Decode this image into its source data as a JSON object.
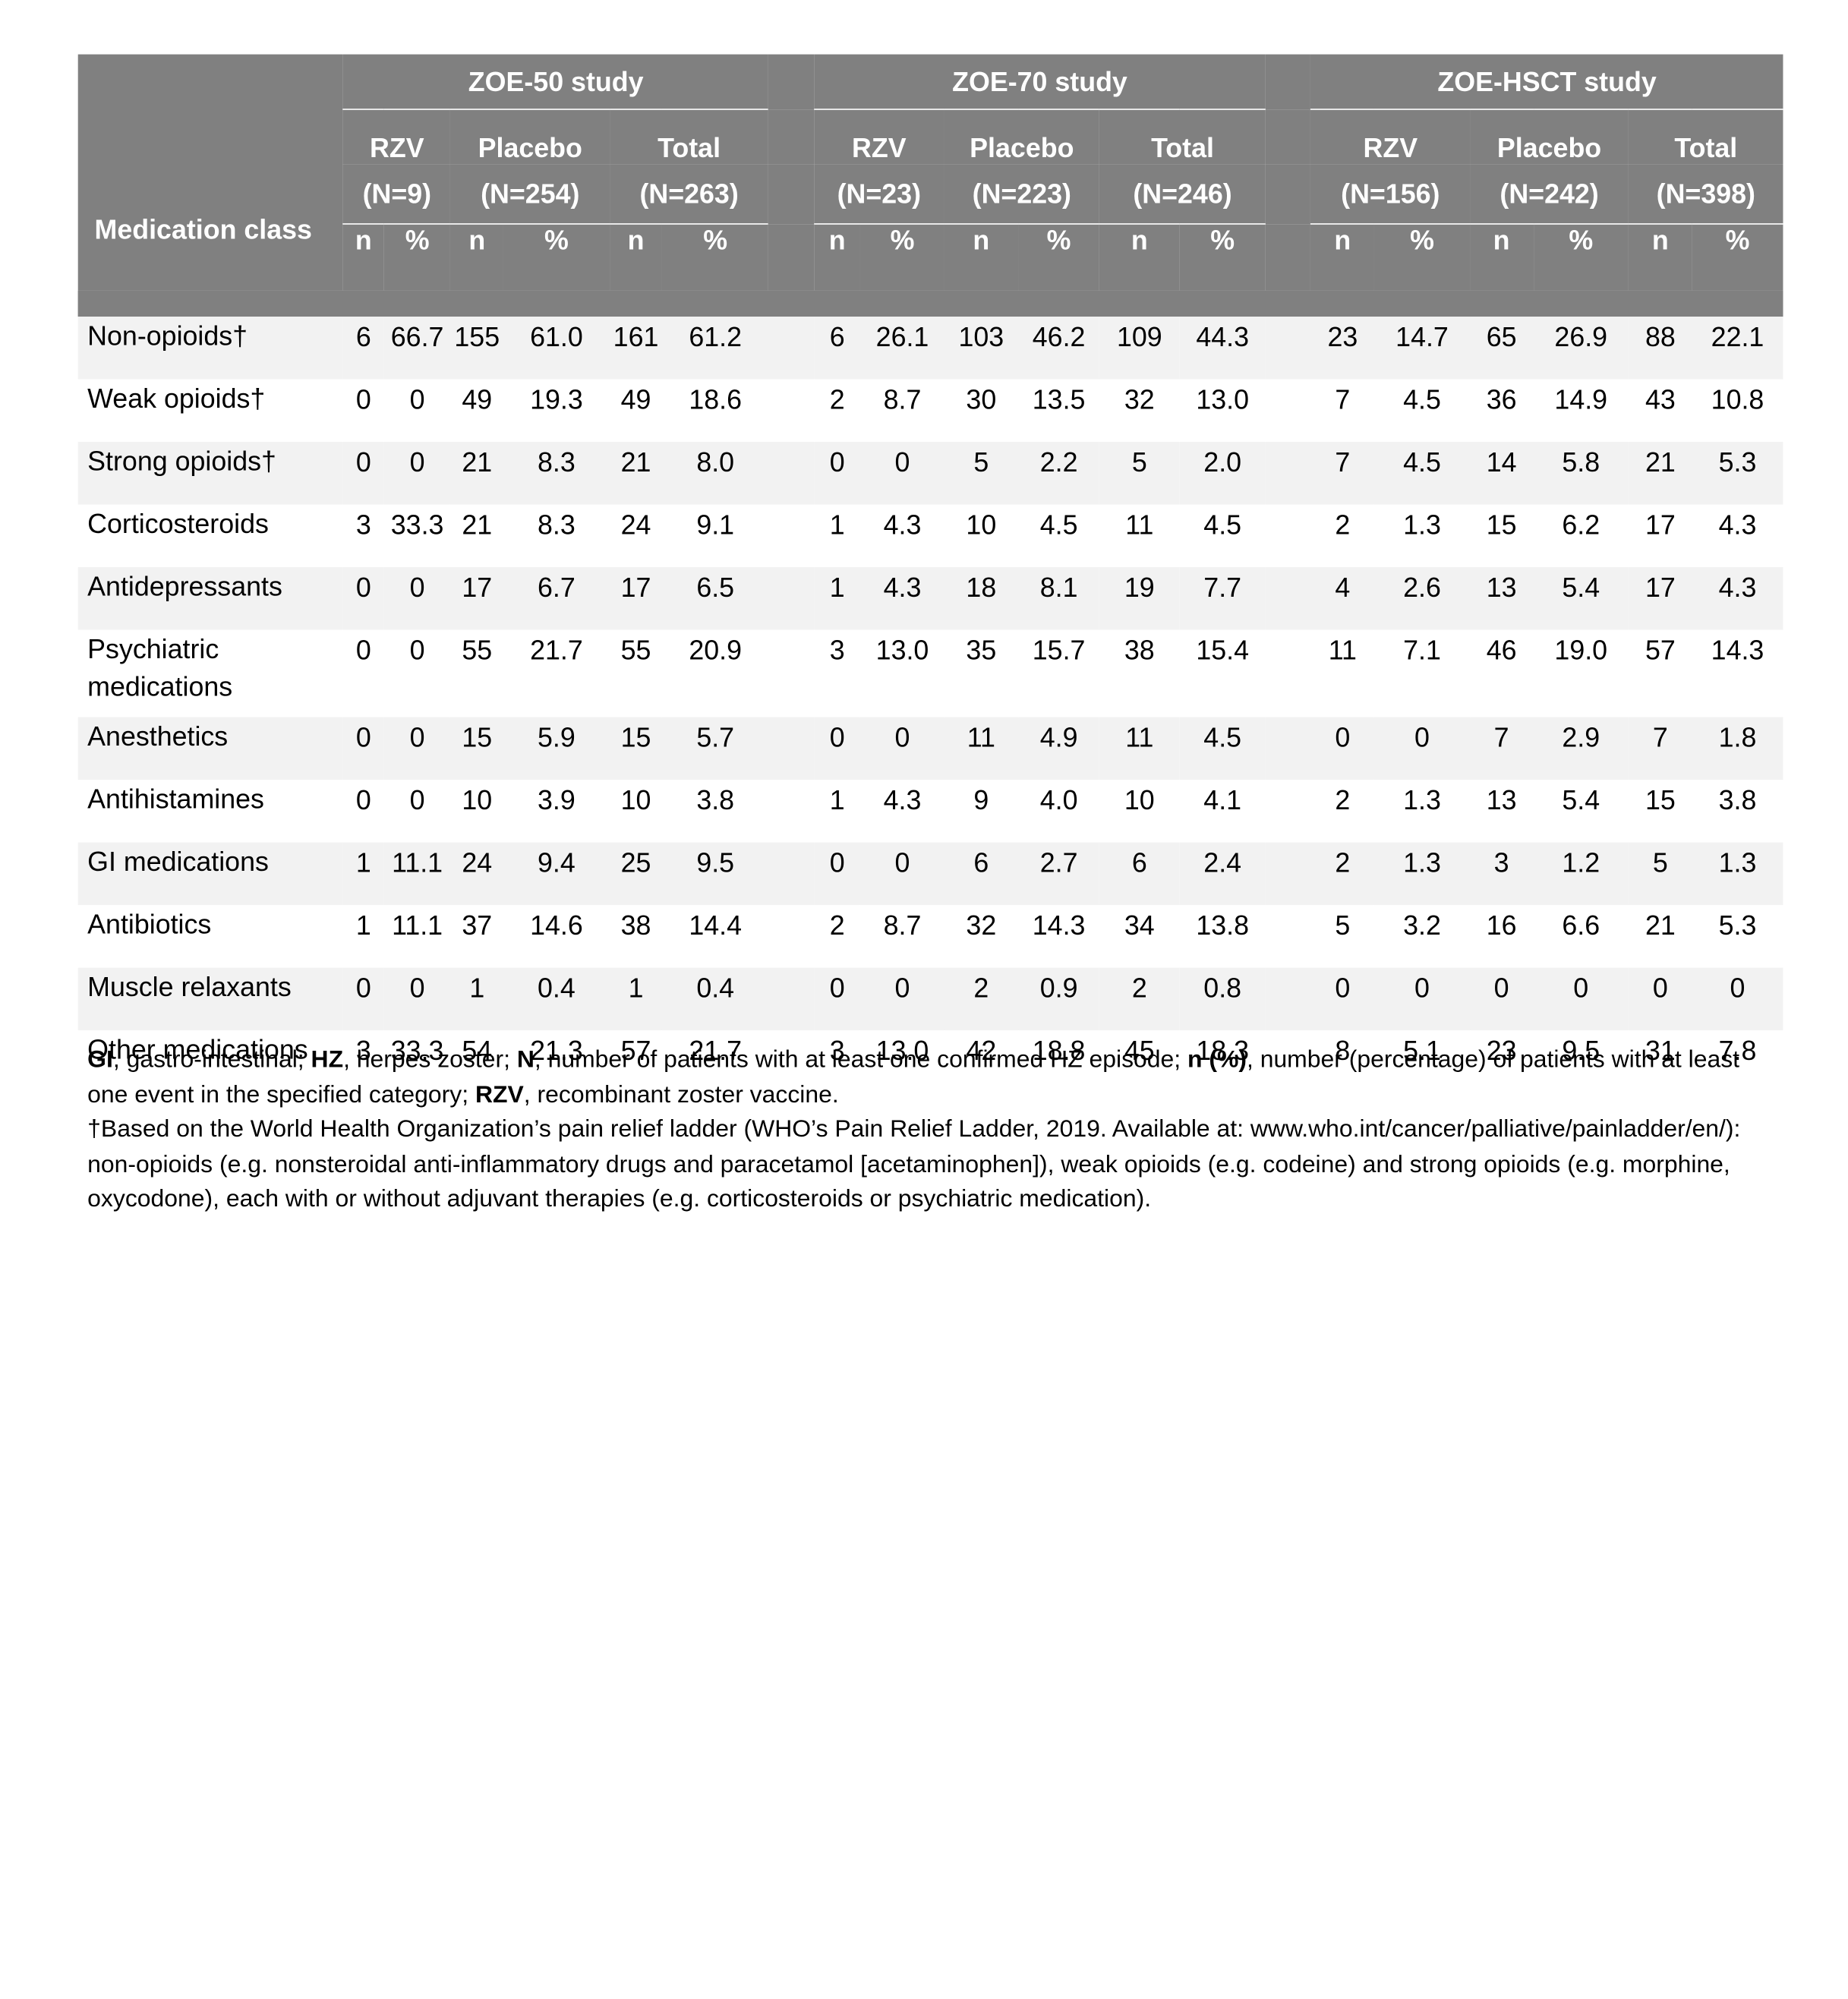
{
  "header": {
    "medication_class_label": "Medication class",
    "studies": [
      {
        "title": "ZOE-50 study",
        "arms": [
          {
            "name": "RZV",
            "n": "(N=9)"
          },
          {
            "name": "Placebo",
            "n": "(N=254)"
          },
          {
            "name": "Total",
            "n": "(N=263)"
          }
        ]
      },
      {
        "title": "ZOE-70 study",
        "arms": [
          {
            "name": "RZV",
            "n": "(N=23)"
          },
          {
            "name": "Placebo",
            "n": "(N=223)"
          },
          {
            "name": "Total",
            "n": "(N=246)"
          }
        ]
      },
      {
        "title": "ZOE-HSCT study",
        "arms": [
          {
            "name": "RZV",
            "n": "(N=156)"
          },
          {
            "name": "Placebo",
            "n": "(N=242)"
          },
          {
            "name": "Total",
            "n": "(N=398)"
          }
        ]
      }
    ],
    "col_n": "n",
    "col_pct": "%"
  },
  "rows": [
    {
      "label": "Non-opioids†",
      "s1": [
        "6",
        "66.7",
        "155",
        "61.0",
        "161",
        "61.2"
      ],
      "s2": [
        "6",
        "26.1",
        "103",
        "46.2",
        "109",
        "44.3"
      ],
      "s3": [
        "23",
        "14.7",
        "65",
        "26.9",
        "88",
        "22.1"
      ]
    },
    {
      "label": "Weak opioids†",
      "s1": [
        "0",
        "0",
        "49",
        "19.3",
        "49",
        "18.6"
      ],
      "s2": [
        "2",
        "8.7",
        "30",
        "13.5",
        "32",
        "13.0"
      ],
      "s3": [
        "7",
        "4.5",
        "36",
        "14.9",
        "43",
        "10.8"
      ]
    },
    {
      "label": "Strong opioids†",
      "s1": [
        "0",
        "0",
        "21",
        "8.3",
        "21",
        "8.0"
      ],
      "s2": [
        "0",
        "0",
        "5",
        "2.2",
        "5",
        "2.0"
      ],
      "s3": [
        "7",
        "4.5",
        "14",
        "5.8",
        "21",
        "5.3"
      ]
    },
    {
      "label": "Corticosteroids",
      "s1": [
        "3",
        "33.3",
        "21",
        "8.3",
        "24",
        "9.1"
      ],
      "s2": [
        "1",
        "4.3",
        "10",
        "4.5",
        "11",
        "4.5"
      ],
      "s3": [
        "2",
        "1.3",
        "15",
        "6.2",
        "17",
        "4.3"
      ]
    },
    {
      "label": "Antidepressants",
      "s1": [
        "0",
        "0",
        "17",
        "6.7",
        "17",
        "6.5"
      ],
      "s2": [
        "1",
        "4.3",
        "18",
        "8.1",
        "19",
        "7.7"
      ],
      "s3": [
        "4",
        "2.6",
        "13",
        "5.4",
        "17",
        "4.3"
      ]
    },
    {
      "label": "Psychiatric medications",
      "s1": [
        "0",
        "0",
        "55",
        "21.7",
        "55",
        "20.9"
      ],
      "s2": [
        "3",
        "13.0",
        "35",
        "15.7",
        "38",
        "15.4"
      ],
      "s3": [
        "11",
        "7.1",
        "46",
        "19.0",
        "57",
        "14.3"
      ]
    },
    {
      "label": "Anesthetics",
      "s1": [
        "0",
        "0",
        "15",
        "5.9",
        "15",
        "5.7"
      ],
      "s2": [
        "0",
        "0",
        "11",
        "4.9",
        "11",
        "4.5"
      ],
      "s3": [
        "0",
        "0",
        "7",
        "2.9",
        "7",
        "1.8"
      ]
    },
    {
      "label": "Antihistamines",
      "s1": [
        "0",
        "0",
        "10",
        "3.9",
        "10",
        "3.8"
      ],
      "s2": [
        "1",
        "4.3",
        "9",
        "4.0",
        "10",
        "4.1"
      ],
      "s3": [
        "2",
        "1.3",
        "13",
        "5.4",
        "15",
        "3.8"
      ]
    },
    {
      "label": "GI medications",
      "s1": [
        "1",
        "11.1",
        "24",
        "9.4",
        "25",
        "9.5"
      ],
      "s2": [
        "0",
        "0",
        "6",
        "2.7",
        "6",
        "2.4"
      ],
      "s3": [
        "2",
        "1.3",
        "3",
        "1.2",
        "5",
        "1.3"
      ]
    },
    {
      "label": "Antibiotics",
      "s1": [
        "1",
        "11.1",
        "37",
        "14.6",
        "38",
        "14.4"
      ],
      "s2": [
        "2",
        "8.7",
        "32",
        "14.3",
        "34",
        "13.8"
      ],
      "s3": [
        "5",
        "3.2",
        "16",
        "6.6",
        "21",
        "5.3"
      ]
    },
    {
      "label": "Muscle relaxants",
      "s1": [
        "0",
        "0",
        "1",
        "0.4",
        "1",
        "0.4"
      ],
      "s2": [
        "0",
        "0",
        "2",
        "0.9",
        "2",
        "0.8"
      ],
      "s3": [
        "0",
        "0",
        "0",
        "0",
        "0",
        "0"
      ]
    },
    {
      "label": "Other medications",
      "s1": [
        "3",
        "33.3",
        "54",
        "21.3",
        "57",
        "21.7"
      ],
      "s2": [
        "3",
        "13.0",
        "42",
        "18.8",
        "45",
        "18.3"
      ],
      "s3": [
        "8",
        "5.1",
        "23",
        "9.5",
        "31",
        "7.8"
      ]
    }
  ],
  "footnotes": {
    "abbrev": [
      {
        "term": "GI",
        "def": ", gastro-intestinal; "
      },
      {
        "term": "HZ",
        "def": ", herpes zoster; "
      },
      {
        "term": "N",
        "def": ", number of patients with at least one confirmed HZ episode; "
      },
      {
        "term": "n (%)",
        "def": ", number (percentage) of patients with at least one event in the specified category; "
      },
      {
        "term": "RZV",
        "def": ", recombinant zoster vaccine."
      }
    ],
    "dagger": "†Based on the World Health Organization’s pain relief ladder (WHO’s Pain Relief Ladder, 2019. Available at: www.who.int/cancer/palliative/painladder/en/): non-opioids (e.g. nonsteroidal anti-inflammatory drugs and paracetamol [acetaminophen]), weak opioids (e.g. codeine) and strong opioids (e.g. morphine, oxycodone), each with or without adjuvant therapies (e.g. corticosteroids or psychiatric medication)."
  }
}
